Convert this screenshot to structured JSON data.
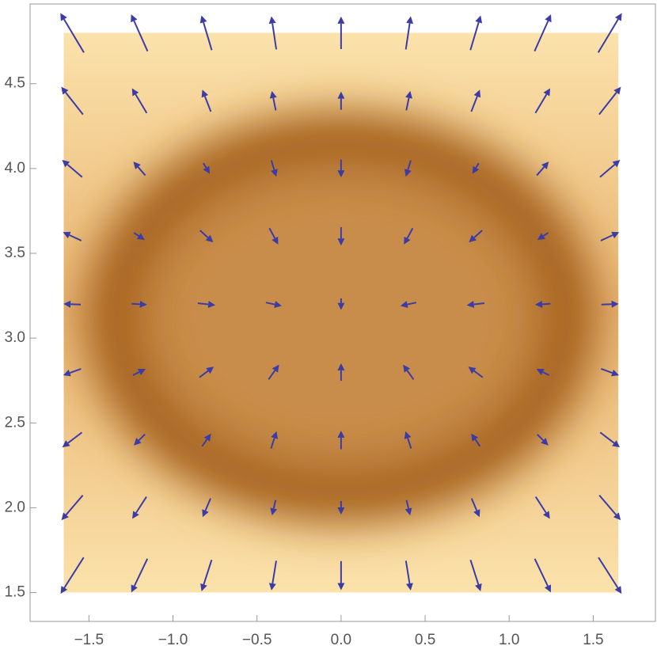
{
  "chart_data": {
    "type": "vector",
    "plot_range": {
      "x": [
        -1.65,
        1.65
      ],
      "y": [
        1.5,
        4.8
      ]
    },
    "xlim": [
      -1.85,
      1.87
    ],
    "ylim": [
      1.33,
      4.97
    ],
    "xticks": [
      {
        "value": -1.5,
        "label": "−1.5"
      },
      {
        "value": -1,
        "label": "−1.0"
      },
      {
        "value": -0.5,
        "label": "−0.5"
      },
      {
        "value": 0,
        "label": "0.0"
      },
      {
        "value": 0.5,
        "label": "0.5"
      },
      {
        "value": 1,
        "label": "1.0"
      },
      {
        "value": 1.5,
        "label": "1.5"
      }
    ],
    "yticks": [
      1.5,
      {
        "value": 2,
        "label": "2.0"
      },
      2.5,
      {
        "value": 3,
        "label": "3.0"
      },
      3.5,
      {
        "value": 4,
        "label": "4.0"
      },
      4.5
    ],
    "color": "#3c3ca6",
    "x": [
      -1.6,
      -1.2,
      -0.8,
      -0.4,
      0,
      0.4,
      0.8,
      1.2,
      1.6
    ],
    "y": [
      1.6,
      2.0,
      2.4,
      2.8,
      3.2,
      3.6,
      4.0,
      4.4,
      4.8
    ],
    "u": [
      [
        -1.87,
        -1.05,
        -0.54,
        -0.22,
        0,
        0.22,
        0.54,
        1.05,
        1.87
      ],
      [
        -1.14,
        -0.51,
        -0.17,
        -0.04,
        0,
        0.04,
        0.17,
        0.51,
        1.14
      ],
      [
        -0.63,
        -0.12,
        0.09,
        0.09,
        0,
        -0.09,
        -0.09,
        0.12,
        0.63
      ],
      [
        -0.33,
        0.1,
        0.23,
        0.17,
        0,
        -0.17,
        -0.23,
        -0.1,
        0.33
      ],
      [
        -0.25,
        0.16,
        0.27,
        0.19,
        0,
        -0.19,
        -0.27,
        -0.16,
        0.25
      ],
      [
        -0.39,
        0.06,
        0.21,
        0.15,
        0,
        -0.15,
        -0.21,
        -0.06,
        0.39
      ],
      [
        -0.74,
        -0.2,
        0.03,
        0.07,
        0,
        -0.07,
        -0.03,
        0.2,
        0.74
      ],
      [
        -1.3,
        -0.63,
        -0.25,
        -0.08,
        0,
        0.08,
        0.25,
        0.63,
        1.3
      ],
      [
        -2.09,
        -1.21,
        -0.64,
        -0.27,
        0,
        0.27,
        0.64,
        1.21,
        2.09
      ]
    ],
    "v": [
      [
        -2.94,
        -2.2,
        -1.68,
        -1.37,
        -1.26,
        -1.37,
        -1.68,
        -2.2,
        -2.94
      ],
      [
        -1.33,
        -0.79,
        -0.4,
        -0.17,
        -0.09,
        -0.17,
        -0.4,
        -0.79,
        -1.33
      ],
      [
        -0.48,
        -0.12,
        0.13,
        0.28,
        0.33,
        0.28,
        0.13,
        -0.12,
        -0.48
      ],
      [
        -0.12,
        0.05,
        0.17,
        0.24,
        0.26,
        0.24,
        0.17,
        0.05,
        -0.12
      ],
      [
        0.01,
        -0.01,
        -0.03,
        -0.04,
        -0.04,
        -0.04,
        -0.03,
        -0.01,
        0.01
      ],
      [
        0.18,
        -0.04,
        -0.19,
        -0.28,
        -0.31,
        -0.28,
        -0.19,
        -0.04,
        0.18
      ],
      [
        0.63,
        0.23,
        -0.05,
        -0.23,
        -0.28,
        -0.23,
        -0.05,
        0.23,
        0.63
      ],
      [
        1.65,
        1.06,
        0.64,
        0.39,
        0.3,
        0.39,
        0.64,
        1.06,
        1.65
      ],
      [
        3.49,
        2.71,
        2.15,
        1.82,
        1.71,
        1.82,
        2.15,
        2.71,
        3.49
      ]
    ]
  }
}
